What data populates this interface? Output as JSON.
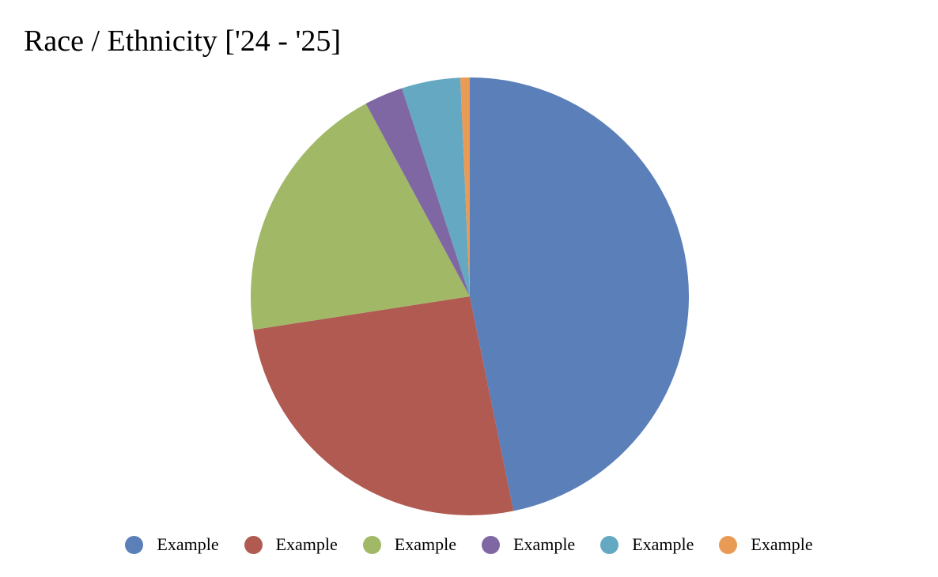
{
  "chart_data": {
    "type": "pie",
    "title": "Race / Ethnicity ['24 - '25]",
    "slices": [
      {
        "label": "Example",
        "value": 47.6,
        "color": "#5b7fb8"
      },
      {
        "label": "Example",
        "value": 26.2,
        "color": "#b05a51"
      },
      {
        "label": "Example",
        "value": 19.9,
        "color": "#a1b867"
      },
      {
        "label": "Example",
        "value": 2.9,
        "color": "#7f67a3"
      },
      {
        "label": "Example",
        "value": 4.4,
        "color": "#64a8c2"
      },
      {
        "label": "Example",
        "value": 0.7,
        "color": "#e99a55"
      }
    ],
    "legend_position": "bottom",
    "start_angle": "12 o'clock",
    "direction": "clockwise"
  }
}
